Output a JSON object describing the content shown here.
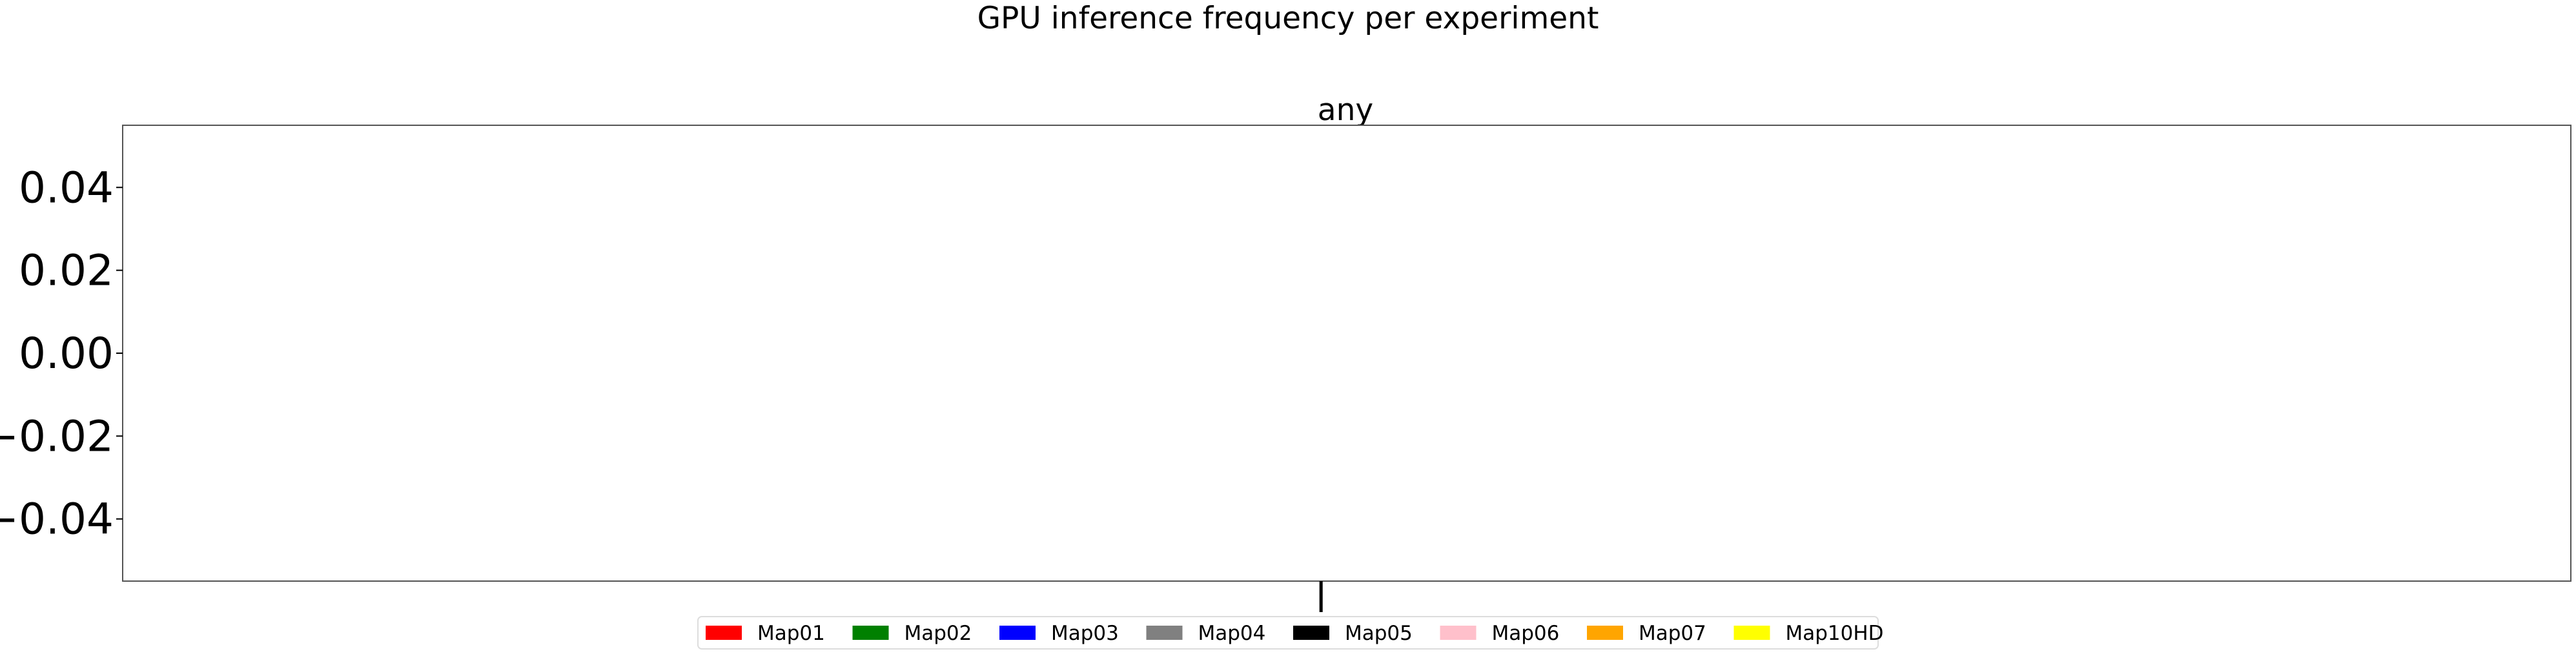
{
  "chart_data": {
    "type": "bar",
    "title": "GPU inference frequency per experiment",
    "subplot_title": "any",
    "xlabel": "",
    "ylabel": "",
    "categories": [
      ""
    ],
    "ylim": [
      -0.055,
      0.055
    ],
    "yticks": [
      "0.04",
      "0.02",
      "0.00",
      "−0.02",
      "−0.04"
    ],
    "grid": false,
    "legend_position": "bottom-center",
    "series": [
      {
        "name": "Map01",
        "color": "#ff0000",
        "values": [
          0
        ]
      },
      {
        "name": "Map02",
        "color": "#008000",
        "values": [
          0
        ]
      },
      {
        "name": "Map03",
        "color": "#0000ff",
        "values": [
          0
        ]
      },
      {
        "name": "Map04",
        "color": "#808080",
        "values": [
          0
        ]
      },
      {
        "name": "Map05",
        "color": "#000000",
        "values": [
          0
        ]
      },
      {
        "name": "Map06",
        "color": "#ffc0cb",
        "values": [
          0
        ]
      },
      {
        "name": "Map07",
        "color": "#ffa500",
        "values": [
          0
        ]
      },
      {
        "name": "Map10HD",
        "color": "#ffff00",
        "values": [
          0
        ]
      }
    ]
  }
}
